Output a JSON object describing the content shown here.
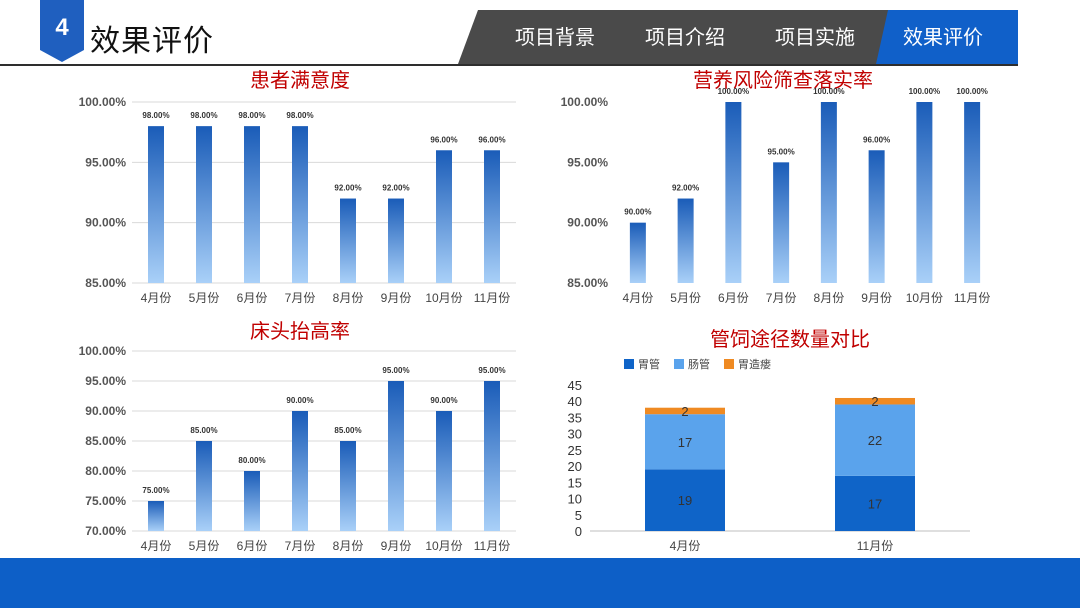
{
  "header": {
    "section_number": "4",
    "title": "效果评价",
    "accent_color": "#1f5fbf",
    "nav_color": "#4a4a4a"
  },
  "nav": {
    "tabs": [
      {
        "label": "项目背景",
        "active": false
      },
      {
        "label": "项目介绍",
        "active": false
      },
      {
        "label": "项目实施",
        "active": false
      },
      {
        "label": "效果评价",
        "active": true
      }
    ]
  },
  "footer": {
    "color": "#0d5fc7"
  },
  "chart_data": [
    {
      "type": "bar",
      "title": "患者满意度",
      "categories": [
        "4月份",
        "5月份",
        "6月份",
        "7月份",
        "8月份",
        "9月份",
        "10月份",
        "11月份"
      ],
      "values": [
        98,
        98,
        98,
        98,
        92,
        92,
        96,
        96
      ],
      "data_labels": [
        "98.00%",
        "98.00%",
        "98.00%",
        "98.00%",
        "92.00%",
        "92.00%",
        "96.00%",
        "96.00%"
      ],
      "yticks": [
        "85.00%",
        "90.00%",
        "95.00%",
        "100.00%"
      ],
      "ylim": [
        85,
        100
      ],
      "grid": true,
      "gradient": "dark-to-light"
    },
    {
      "type": "bar",
      "title": "营养风险筛查落实率",
      "categories": [
        "4月份",
        "5月份",
        "6月份",
        "7月份",
        "8月份",
        "9月份",
        "10月份",
        "11月份"
      ],
      "values": [
        90,
        92,
        100,
        95,
        100,
        96,
        100,
        100
      ],
      "data_labels": [
        "90.00%",
        "92.00%",
        "100.00%",
        "95.00%",
        "100.00%",
        "96.00%",
        "100.00%",
        "100.00%"
      ],
      "yticks": [
        "85.00%",
        "90.00%",
        "95.00%",
        "100.00%"
      ],
      "ylim": [
        85,
        100
      ],
      "grid": false,
      "gradient": "dark-to-light"
    },
    {
      "type": "bar",
      "title": "床头抬高率",
      "categories": [
        "4月份",
        "5月份",
        "6月份",
        "7月份",
        "8月份",
        "9月份",
        "10月份",
        "11月份"
      ],
      "values": [
        75,
        85,
        80,
        90,
        85,
        95,
        90,
        95
      ],
      "data_labels": [
        "75.00%",
        "85.00%",
        "80.00%",
        "90.00%",
        "85.00%",
        "95.00%",
        "90.00%",
        "95.00%"
      ],
      "yticks": [
        "70.00%",
        "75.00%",
        "80.00%",
        "85.00%",
        "90.00%",
        "95.00%",
        "100.00%"
      ],
      "ylim": [
        70,
        100
      ],
      "grid": true,
      "gradient": "dark-to-light"
    },
    {
      "type": "bar",
      "stacked": true,
      "title": "管饲途径数量对比",
      "categories": [
        "4月份",
        "11月份"
      ],
      "series": [
        {
          "name": "胃管",
          "values": [
            19,
            17
          ],
          "color": "#0f64c8"
        },
        {
          "name": "肠管",
          "values": [
            17,
            22
          ],
          "color": "#5aa3ec"
        },
        {
          "name": "胃造瘘",
          "values": [
            2,
            2
          ],
          "color": "#ef8a22"
        }
      ],
      "yticks": [
        "0",
        "5",
        "10",
        "15",
        "20",
        "25",
        "30",
        "35",
        "40",
        "45"
      ],
      "ylim": [
        0,
        45
      ],
      "legend": "top-left",
      "grid": false
    }
  ]
}
